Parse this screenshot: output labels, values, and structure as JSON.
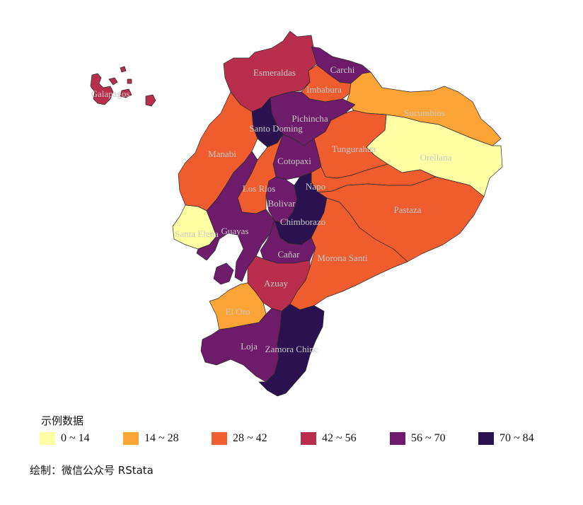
{
  "legend": {
    "title": "示例数据",
    "bins": [
      {
        "label": "0 ~ 14",
        "color": "#FFFFA4"
      },
      {
        "label": "14 ~ 28",
        "color": "#FCA436"
      },
      {
        "label": "28 ~ 42",
        "color": "#EF5C2D"
      },
      {
        "label": "42 ~ 56",
        "color": "#B92E4C"
      },
      {
        "label": "56 ~ 70",
        "color": "#6D1B6A"
      },
      {
        "label": "70 ~ 84",
        "color": "#2A1150"
      }
    ]
  },
  "credit": "绘制：微信公众号 RStata",
  "provinces": [
    {
      "name": "Galapagos",
      "bin": 3
    },
    {
      "name": "Esmeraldas",
      "bin": 3
    },
    {
      "name": "Carchi",
      "bin": 4
    },
    {
      "name": "Imbabura",
      "bin": 2
    },
    {
      "name": "Sucumbios",
      "bin": 1
    },
    {
      "name": "Pichincha",
      "bin": 4
    },
    {
      "name": "Santo Doming",
      "bin": 5
    },
    {
      "name": "Manabi",
      "bin": 2
    },
    {
      "name": "Orellana",
      "bin": 0
    },
    {
      "name": "Tungurahua",
      "bin": 2
    },
    {
      "name": "Cotopaxi",
      "bin": 4
    },
    {
      "name": "Los Rios",
      "bin": 2
    },
    {
      "name": "Napo",
      "bin": 2
    },
    {
      "name": "Bolivar",
      "bin": 4
    },
    {
      "name": "Pastaza",
      "bin": 2
    },
    {
      "name": "Santa Elena",
      "bin": 0
    },
    {
      "name": "Guayas",
      "bin": 4
    },
    {
      "name": "Chimborazo",
      "bin": 5
    },
    {
      "name": "Cañar",
      "bin": 4
    },
    {
      "name": "Morona Santi",
      "bin": 2
    },
    {
      "name": "Azuay",
      "bin": 3
    },
    {
      "name": "El Oro",
      "bin": 1
    },
    {
      "name": "Loja",
      "bin": 4
    },
    {
      "name": "Zamora Chinc",
      "bin": 5
    }
  ]
}
